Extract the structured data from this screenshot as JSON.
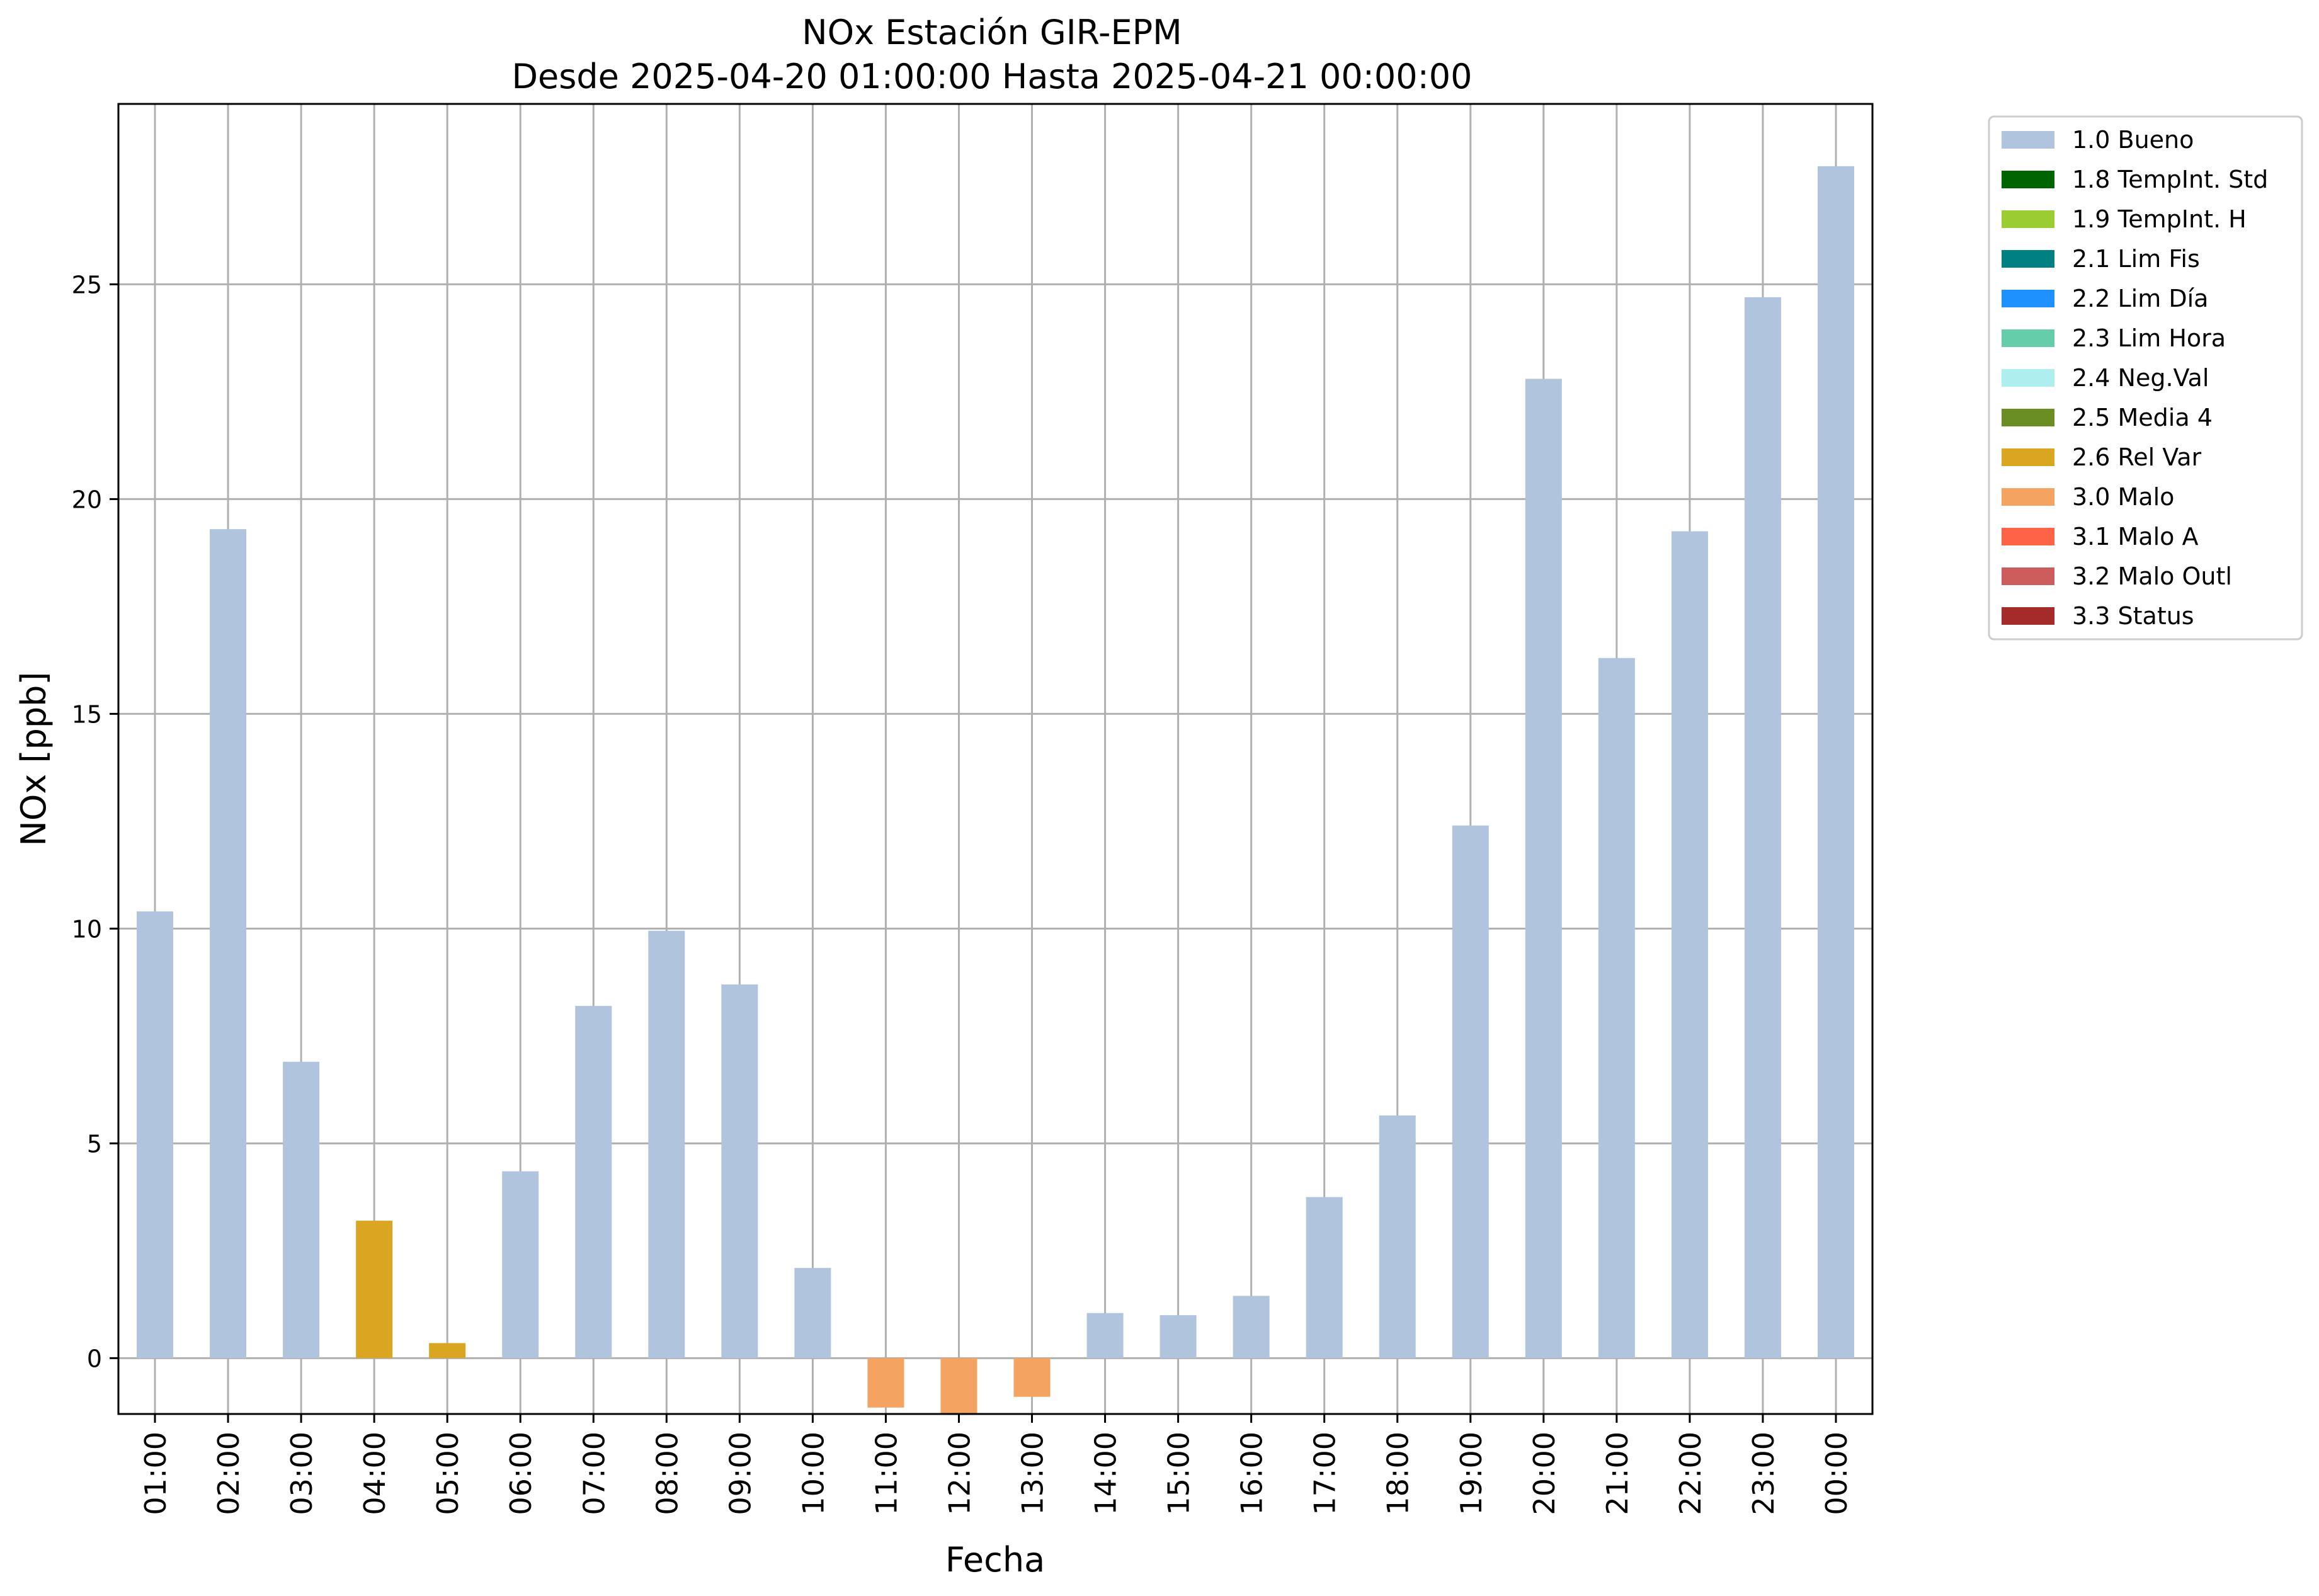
{
  "chart_data": {
    "type": "bar",
    "title": "NOx Estación GIR-EPM",
    "subtitle": "Desde 2025-04-20 01:00:00 Hasta 2025-04-21 00:00:00",
    "xlabel": "Fecha",
    "ylabel": "NOx [ppb]",
    "ylim": [
      -1.3,
      29.2
    ],
    "yticks": [
      0,
      5,
      10,
      15,
      20,
      25
    ],
    "grid": true,
    "legend_position": "outside-right",
    "categories": [
      "01:00",
      "02:00",
      "03:00",
      "04:00",
      "05:00",
      "06:00",
      "07:00",
      "08:00",
      "09:00",
      "10:00",
      "11:00",
      "12:00",
      "13:00",
      "14:00",
      "15:00",
      "16:00",
      "17:00",
      "18:00",
      "19:00",
      "20:00",
      "21:00",
      "22:00",
      "23:00",
      "00:00"
    ],
    "values": [
      10.4,
      19.3,
      6.9,
      3.2,
      0.35,
      4.35,
      8.2,
      9.95,
      8.7,
      2.1,
      -1.15,
      -1.3,
      -0.9,
      1.05,
      1.0,
      1.45,
      3.75,
      5.65,
      12.4,
      22.8,
      16.3,
      19.25,
      24.7,
      27.75
    ],
    "flags": [
      "1.0 Bueno",
      "1.0 Bueno",
      "1.0 Bueno",
      "2.6 Rel Var",
      "2.6 Rel Var",
      "1.0 Bueno",
      "1.0 Bueno",
      "1.0 Bueno",
      "1.0 Bueno",
      "1.0 Bueno",
      "3.0 Malo",
      "3.0 Malo",
      "3.0 Malo",
      "1.0 Bueno",
      "1.0 Bueno",
      "1.0 Bueno",
      "1.0 Bueno",
      "1.0 Bueno",
      "1.0 Bueno",
      "1.0 Bueno",
      "1.0 Bueno",
      "1.0 Bueno",
      "1.0 Bueno",
      "1.0 Bueno"
    ],
    "legend": [
      {
        "label": "1.0 Bueno",
        "color": "#b0c4de"
      },
      {
        "label": "1.8 TempInt. Std",
        "color": "#006400"
      },
      {
        "label": "1.9 TempInt. H",
        "color": "#9acd32"
      },
      {
        "label": "2.1 Lim Fis",
        "color": "#008080"
      },
      {
        "label": "2.2 Lim Día",
        "color": "#1e90ff"
      },
      {
        "label": "2.3 Lim Hora",
        "color": "#66cdaa"
      },
      {
        "label": "2.4 Neg.Val",
        "color": "#afeeee"
      },
      {
        "label": "2.5 Media 4",
        "color": "#6b8e23"
      },
      {
        "label": "2.6 Rel Var",
        "color": "#daa520"
      },
      {
        "label": "3.0 Malo",
        "color": "#f4a460"
      },
      {
        "label": "3.1 Malo A",
        "color": "#ff6347"
      },
      {
        "label": "3.2 Malo Outl",
        "color": "#cd5c5c"
      },
      {
        "label": "3.3 Status",
        "color": "#a52a2a"
      }
    ]
  }
}
